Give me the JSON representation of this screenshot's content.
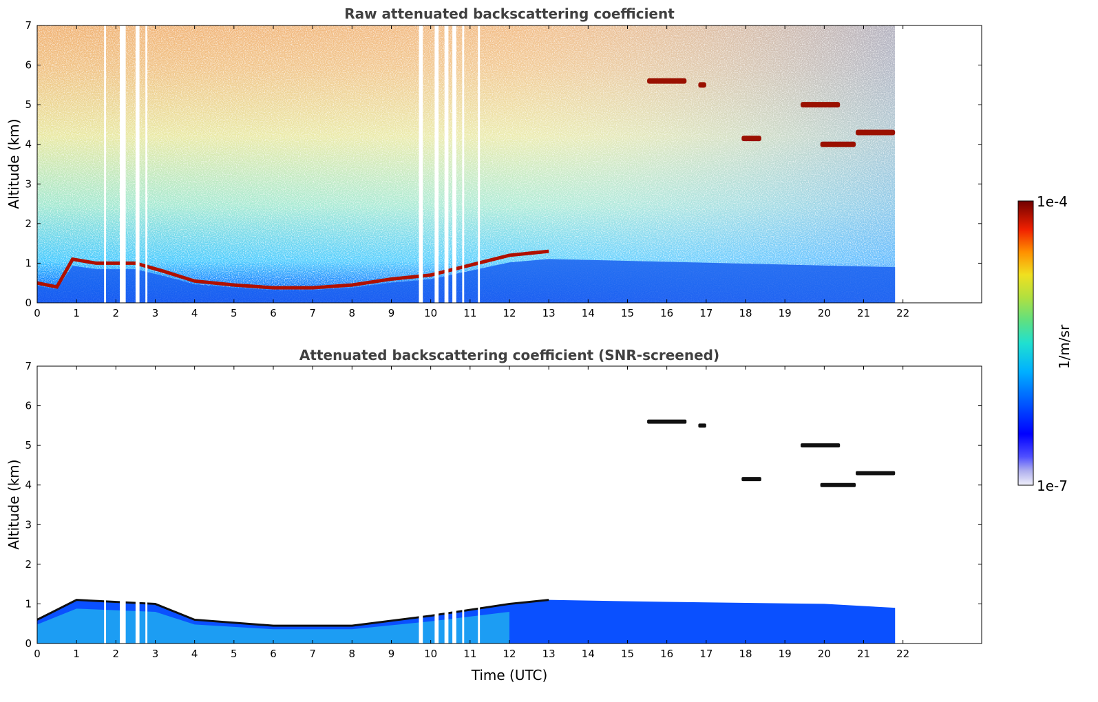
{
  "chart_data": [
    {
      "type": "heatmap",
      "title": "Raw attenuated backscattering coefficient",
      "xlabel": "",
      "ylabel": "Altitude (km)",
      "xlim": [
        0,
        24
      ],
      "ylim": [
        0,
        7
      ],
      "xticks": [
        "0",
        "1",
        "2",
        "3",
        "4",
        "5",
        "6",
        "7",
        "8",
        "9",
        "10",
        "11",
        "12",
        "13",
        "14",
        "15",
        "16",
        "17",
        "18",
        "19",
        "20",
        "21",
        "22"
      ],
      "yticks": [
        "0",
        "1",
        "2",
        "3",
        "4",
        "5",
        "6",
        "7"
      ],
      "data_end_time": 21.8,
      "boundary_layer_top_km": [
        [
          0,
          0.5
        ],
        [
          0.5,
          0.4
        ],
        [
          0.9,
          1.1
        ],
        [
          1.5,
          1.0
        ],
        [
          2.5,
          1.0
        ],
        [
          3.2,
          0.8
        ],
        [
          4,
          0.55
        ],
        [
          5,
          0.45
        ],
        [
          6,
          0.38
        ],
        [
          7,
          0.38
        ],
        [
          8,
          0.45
        ],
        [
          9,
          0.6
        ],
        [
          10,
          0.7
        ],
        [
          11,
          0.95
        ],
        [
          12,
          1.2
        ],
        [
          13,
          1.3
        ]
      ],
      "cloud_layers": [
        {
          "t0": 15.5,
          "t1": 16.5,
          "alt_km": 5.6
        },
        {
          "t0": 16.8,
          "t1": 17.0,
          "alt_km": 5.5
        },
        {
          "t0": 17.9,
          "t1": 18.4,
          "alt_km": 4.15
        },
        {
          "t0": 19.9,
          "t1": 20.8,
          "alt_km": 4.0
        },
        {
          "t0": 20.8,
          "t1": 21.8,
          "alt_km": 4.3
        },
        {
          "t0": 19.4,
          "t1": 20.4,
          "alt_km": 5.0
        }
      ],
      "missing_time_gaps": [
        [
          1.7,
          1.75
        ],
        [
          2.1,
          2.25
        ],
        [
          2.5,
          2.6
        ],
        [
          2.75,
          2.8
        ],
        [
          9.7,
          9.8
        ],
        [
          10.1,
          10.2
        ],
        [
          10.35,
          10.45
        ],
        [
          10.55,
          10.65
        ],
        [
          10.8,
          10.85
        ],
        [
          11.2,
          11.25
        ]
      ]
    },
    {
      "type": "heatmap",
      "title": "Attenuated backscattering coefficient (SNR-screened)",
      "xlabel": "Time (UTC)",
      "ylabel": "Altitude (km)",
      "xlim": [
        0,
        24
      ],
      "ylim": [
        0,
        7
      ],
      "xticks": [
        "0",
        "1",
        "2",
        "3",
        "4",
        "5",
        "6",
        "7",
        "8",
        "9",
        "10",
        "11",
        "12",
        "13",
        "14",
        "15",
        "16",
        "17",
        "18",
        "19",
        "20",
        "21",
        "22"
      ],
      "yticks": [
        "0",
        "1",
        "2",
        "3",
        "4",
        "5",
        "6",
        "7"
      ],
      "data_end_time": 21.8,
      "screened_layer_top_km": [
        [
          0,
          0.6
        ],
        [
          1,
          1.1
        ],
        [
          3,
          1.0
        ],
        [
          4,
          0.6
        ],
        [
          6,
          0.45
        ],
        [
          8,
          0.45
        ],
        [
          10,
          0.7
        ],
        [
          12,
          1.0
        ],
        [
          13,
          1.1
        ],
        [
          16,
          1.05
        ],
        [
          20,
          1.0
        ],
        [
          21.8,
          0.9
        ]
      ]
    }
  ],
  "colorbar": {
    "max_label": "1e-4",
    "min_label": "1e-7",
    "unit_label": "1/m/sr",
    "colors": [
      "#e6e6f5",
      "#b4b4f0",
      "#7878ff",
      "#0000ff",
      "#0050ff",
      "#00a0ff",
      "#00d8e6",
      "#30e0a0",
      "#80e070",
      "#c0e040",
      "#f0e020",
      "#ffb000",
      "#ff6000",
      "#e01000",
      "#a00000",
      "#700000"
    ]
  }
}
